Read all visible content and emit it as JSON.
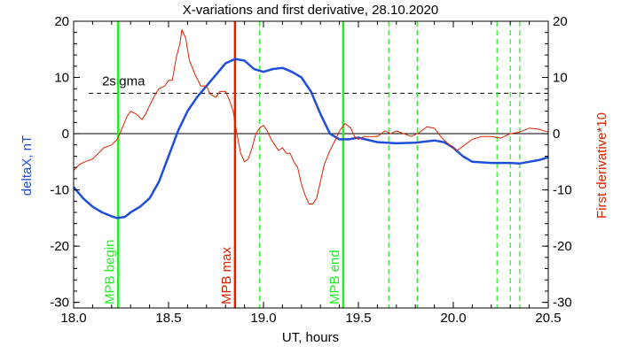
{
  "chart_data": {
    "type": "line",
    "title": "X-variations and first derivative, 28.10.2020",
    "xlabel": "UT, hours",
    "ylabel_left": "deltaX, nT",
    "ylabel_right": "First derivative*10",
    "xlim": [
      18.0,
      20.5
    ],
    "ylim": [
      -31,
      20
    ],
    "x_ticks": [
      18.0,
      18.5,
      19.0,
      19.5,
      20.0,
      20.5
    ],
    "x_tick_labels": [
      "18.0",
      "18.5",
      "19.0",
      "19.5",
      "20.0",
      "20.5"
    ],
    "y_ticks": [
      20,
      10,
      0,
      -10,
      -20,
      -30
    ],
    "y_tick_labels_left": [
      "20",
      "10",
      "0",
      "-10",
      "-20",
      "-30"
    ],
    "y_tick_labels_right": [
      "20",
      "10",
      "0",
      "-10",
      "-20",
      "-30"
    ],
    "threshold": {
      "label": "2sigma",
      "value": 7.2,
      "style": "dashed"
    },
    "zero_line": 0,
    "series": [
      {
        "color": "#1f4fd8",
        "points": [
          [
            18.0,
            -9.5
          ],
          [
            18.05,
            -11.5
          ],
          [
            18.1,
            -13.0
          ],
          [
            18.15,
            -14.0
          ],
          [
            18.2,
            -14.7
          ],
          [
            18.23,
            -15.0
          ],
          [
            18.27,
            -14.8
          ],
          [
            18.3,
            -14.0
          ],
          [
            18.35,
            -13.0
          ],
          [
            18.4,
            -11.5
          ],
          [
            18.45,
            -8.5
          ],
          [
            18.5,
            -4.0
          ],
          [
            18.55,
            0.5
          ],
          [
            18.6,
            4.0
          ],
          [
            18.65,
            6.5
          ],
          [
            18.7,
            8.5
          ],
          [
            18.75,
            10.5
          ],
          [
            18.8,
            12.5
          ],
          [
            18.85,
            13.3
          ],
          [
            18.9,
            13.0
          ],
          [
            18.95,
            11.5
          ],
          [
            19.0,
            11.0
          ],
          [
            19.05,
            11.5
          ],
          [
            19.1,
            11.7
          ],
          [
            19.15,
            11.0
          ],
          [
            19.2,
            10.0
          ],
          [
            19.25,
            7.5
          ],
          [
            19.3,
            3.5
          ],
          [
            19.35,
            0.0
          ],
          [
            19.4,
            -1.0
          ],
          [
            19.45,
            -1.0
          ],
          [
            19.5,
            -0.7
          ],
          [
            19.6,
            -1.5
          ],
          [
            19.7,
            -1.7
          ],
          [
            19.8,
            -1.6
          ],
          [
            19.9,
            -1.2
          ],
          [
            19.95,
            -1.5
          ],
          [
            20.0,
            -2.5
          ],
          [
            20.05,
            -4.0
          ],
          [
            20.1,
            -5.0
          ],
          [
            20.2,
            -5.2
          ],
          [
            20.3,
            -5.2
          ],
          [
            20.35,
            -5.3
          ],
          [
            20.4,
            -5.0
          ],
          [
            20.45,
            -4.7
          ],
          [
            20.5,
            -4.2
          ]
        ]
      },
      {
        "color": "#dd2200",
        "points": [
          [
            18.0,
            -6.5
          ],
          [
            18.03,
            -5.5
          ],
          [
            18.06,
            -5.0
          ],
          [
            18.1,
            -4.5
          ],
          [
            18.13,
            -3.5
          ],
          [
            18.16,
            -2.5
          ],
          [
            18.2,
            -2.0
          ],
          [
            18.23,
            -1.0
          ],
          [
            18.25,
            0.5
          ],
          [
            18.28,
            3.0
          ],
          [
            18.3,
            4.0
          ],
          [
            18.33,
            3.5
          ],
          [
            18.36,
            2.5
          ],
          [
            18.38,
            3.5
          ],
          [
            18.4,
            5.0
          ],
          [
            18.43,
            7.0
          ],
          [
            18.45,
            8.0
          ],
          [
            18.48,
            8.5
          ],
          [
            18.5,
            9.5
          ],
          [
            18.52,
            9.5
          ],
          [
            18.54,
            13.5
          ],
          [
            18.56,
            16.0
          ],
          [
            18.57,
            18.5
          ],
          [
            18.59,
            17.0
          ],
          [
            18.61,
            13.0
          ],
          [
            18.64,
            10.5
          ],
          [
            18.67,
            8.5
          ],
          [
            18.7,
            8.5
          ],
          [
            18.72,
            7.0
          ],
          [
            18.75,
            6.5
          ],
          [
            18.77,
            7.5
          ],
          [
            18.8,
            7.5
          ],
          [
            18.82,
            6.0
          ],
          [
            18.84,
            4.0
          ],
          [
            18.86,
            0.0
          ],
          [
            18.88,
            -3.5
          ],
          [
            18.9,
            -5.0
          ],
          [
            18.92,
            -4.5
          ],
          [
            18.94,
            -2.5
          ],
          [
            18.96,
            0.0
          ],
          [
            18.98,
            1.0
          ],
          [
            19.0,
            1.5
          ],
          [
            19.02,
            0.5
          ],
          [
            19.04,
            -1.0
          ],
          [
            19.06,
            -2.0
          ],
          [
            19.08,
            -3.0
          ],
          [
            19.1,
            -2.5
          ],
          [
            19.12,
            -3.5
          ],
          [
            19.14,
            -3.5
          ],
          [
            19.16,
            -5.0
          ],
          [
            19.18,
            -6.0
          ],
          [
            19.2,
            -9.0
          ],
          [
            19.22,
            -11.0
          ],
          [
            19.24,
            -12.5
          ],
          [
            19.26,
            -12.5
          ],
          [
            19.28,
            -11.5
          ],
          [
            19.3,
            -8.5
          ],
          [
            19.32,
            -5.5
          ],
          [
            19.35,
            -3.0
          ],
          [
            19.38,
            -1.0
          ],
          [
            19.4,
            0.5
          ],
          [
            19.43,
            1.8
          ],
          [
            19.46,
            1.0
          ],
          [
            19.48,
            -0.5
          ],
          [
            19.5,
            -1.0
          ],
          [
            19.53,
            -0.5
          ],
          [
            19.56,
            -0.5
          ],
          [
            19.6,
            -0.5
          ],
          [
            19.64,
            0.5
          ],
          [
            19.67,
            0.0
          ],
          [
            19.7,
            0.5
          ],
          [
            19.74,
            0.0
          ],
          [
            19.78,
            -0.5
          ],
          [
            19.82,
            0.2
          ],
          [
            19.86,
            1.2
          ],
          [
            19.9,
            1.0
          ],
          [
            19.94,
            -0.8
          ],
          [
            19.98,
            -2.0
          ],
          [
            20.02,
            -3.0
          ],
          [
            20.06,
            -2.0
          ],
          [
            20.1,
            -1.0
          ],
          [
            20.15,
            -0.5
          ],
          [
            20.2,
            -0.5
          ],
          [
            20.25,
            -0.8
          ],
          [
            20.3,
            0.0
          ],
          [
            20.35,
            0.3
          ],
          [
            20.4,
            1.0
          ],
          [
            20.45,
            0.8
          ],
          [
            20.5,
            0.3
          ]
        ]
      }
    ],
    "vertical_lines": [
      {
        "x": 18.235,
        "color": "#22ee22",
        "style": "solid",
        "label": "MPB begin"
      },
      {
        "x": 18.85,
        "color": "#dd2200",
        "style": "solid",
        "label": "MPB max"
      },
      {
        "x": 18.98,
        "color": "#22ee22",
        "style": "dashed"
      },
      {
        "x": 19.42,
        "color": "#22ee22",
        "style": "solid",
        "label": "MPB end"
      },
      {
        "x": 19.66,
        "color": "#22ee22",
        "style": "dashed"
      },
      {
        "x": 19.81,
        "color": "#22ee22",
        "style": "dashed"
      },
      {
        "x": 20.23,
        "color": "#22ee22",
        "style": "dashed"
      },
      {
        "x": 20.3,
        "color": "#22ee22",
        "style": "dashed"
      },
      {
        "x": 20.35,
        "color": "#22ee22",
        "style": "dashed"
      }
    ],
    "colors": {
      "left_axis_label": "#1f4fd8",
      "right_axis_label": "#dd2200",
      "axes": "#000000"
    }
  }
}
